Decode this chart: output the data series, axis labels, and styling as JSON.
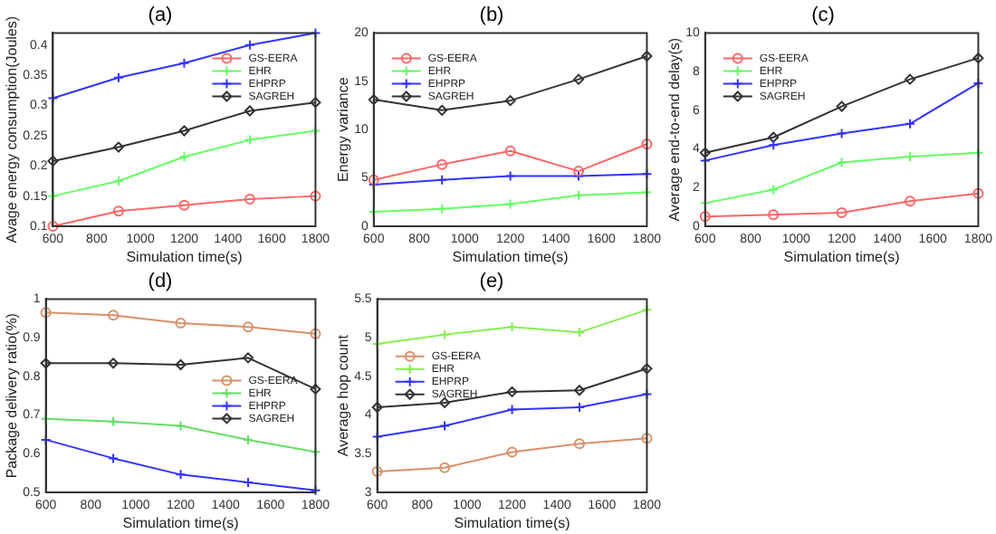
{
  "chart_data": [
    {
      "type": "line",
      "title": "(a)",
      "xlabel": "Simulation time(s)",
      "ylabel": "Avage energy consumption(Joules)",
      "x": [
        600,
        900,
        1200,
        1500,
        1800
      ],
      "xlim": [
        600,
        1800
      ],
      "xticks": [
        600,
        800,
        1000,
        1200,
        1400,
        1600,
        1800
      ],
      "ylim": [
        0.1,
        0.42
      ],
      "yticks": [
        0.1,
        0.15,
        0.2,
        0.25,
        0.3,
        0.35,
        0.4
      ],
      "legend": "top right",
      "series": [
        {
          "name": "GS-EERA",
          "color": "#ff6666",
          "marker": "circle",
          "values": [
            0.1,
            0.125,
            0.135,
            0.145,
            0.15
          ]
        },
        {
          "name": "EHR",
          "color": "#66ff66",
          "marker": "cross",
          "values": [
            0.15,
            0.175,
            0.215,
            0.243,
            0.258
          ]
        },
        {
          "name": "EHPRP",
          "color": "#3333ff",
          "marker": "cross",
          "values": [
            0.312,
            0.346,
            0.37,
            0.4,
            0.42
          ]
        },
        {
          "name": "SAGREH",
          "color": "#333333",
          "marker": "diamond",
          "values": [
            0.208,
            0.231,
            0.258,
            0.291,
            0.305
          ]
        }
      ]
    },
    {
      "type": "line",
      "title": "(b)",
      "xlabel": "Simulation time(s)",
      "ylabel": "Energy variance",
      "x": [
        600,
        900,
        1200,
        1500,
        1800
      ],
      "xlim": [
        600,
        1800
      ],
      "xticks": [
        600,
        800,
        1000,
        1200,
        1400,
        1600,
        1800
      ],
      "ylim": [
        0,
        20
      ],
      "yticks": [
        0,
        5,
        10,
        15,
        20
      ],
      "legend": "top left",
      "series": [
        {
          "name": "GS-EERA",
          "color": "#ff6666",
          "marker": "circle",
          "values": [
            4.8,
            6.4,
            7.8,
            5.7,
            8.5
          ]
        },
        {
          "name": "EHR",
          "color": "#66ff66",
          "marker": "cross",
          "values": [
            1.5,
            1.8,
            2.3,
            3.2,
            3.5
          ]
        },
        {
          "name": "EHPRP",
          "color": "#3333ff",
          "marker": "cross",
          "values": [
            4.3,
            4.8,
            5.2,
            5.2,
            5.4
          ]
        },
        {
          "name": "SAGREH",
          "color": "#333333",
          "marker": "diamond",
          "values": [
            13.1,
            12.0,
            13.0,
            15.2,
            17.6
          ]
        }
      ]
    },
    {
      "type": "line",
      "title": "(c)",
      "xlabel": "Simulation time(s)",
      "ylabel": "Average end-to-end delay(s)",
      "x": [
        600,
        900,
        1200,
        1500,
        1800
      ],
      "xlim": [
        600,
        1800
      ],
      "xticks": [
        600,
        800,
        1000,
        1200,
        1400,
        1600,
        1800
      ],
      "ylim": [
        0,
        10
      ],
      "yticks": [
        0,
        2,
        4,
        6,
        8,
        10
      ],
      "legend": "top left",
      "series": [
        {
          "name": "GS-EERA",
          "color": "#ff6666",
          "marker": "circle",
          "values": [
            0.5,
            0.6,
            0.7,
            1.3,
            1.7
          ]
        },
        {
          "name": "EHR",
          "color": "#66ff66",
          "marker": "cross",
          "values": [
            1.2,
            1.9,
            3.3,
            3.6,
            3.8
          ]
        },
        {
          "name": "EHPRP",
          "color": "#3333ff",
          "marker": "cross",
          "values": [
            3.4,
            4.2,
            4.8,
            5.3,
            7.4
          ]
        },
        {
          "name": "SAGREH",
          "color": "#333333",
          "marker": "diamond",
          "values": [
            3.8,
            4.6,
            6.2,
            7.6,
            8.7
          ]
        }
      ]
    },
    {
      "type": "line",
      "title": "(d)",
      "xlabel": "Simulation time(s)",
      "ylabel": "Package delivery ratio(%)",
      "x": [
        600,
        900,
        1200,
        1500,
        1800
      ],
      "xlim": [
        600,
        1800
      ],
      "xticks": [
        600,
        800,
        1000,
        1200,
        1400,
        1600,
        1800
      ],
      "ylim": [
        0.5,
        1
      ],
      "yticks": [
        0.5,
        0.6,
        0.7,
        0.8,
        0.9,
        1
      ],
      "legend": "right",
      "series": [
        {
          "name": "GS-EERA",
          "color": "#d9906a",
          "marker": "circle",
          "values": [
            0.965,
            0.958,
            0.938,
            0.928,
            0.91
          ]
        },
        {
          "name": "EHR",
          "color": "#66dd66",
          "marker": "cross",
          "values": [
            0.69,
            0.683,
            0.672,
            0.636,
            0.605
          ]
        },
        {
          "name": "EHPRP",
          "color": "#3333ff",
          "marker": "cross",
          "values": [
            0.636,
            0.588,
            0.546,
            0.526,
            0.505
          ]
        },
        {
          "name": "SAGREH",
          "color": "#333333",
          "marker": "diamond",
          "values": [
            0.834,
            0.834,
            0.83,
            0.848,
            0.767
          ]
        }
      ]
    },
    {
      "type": "line",
      "title": "(e)",
      "xlabel": "Simulation time(s)",
      "ylabel": "Average hop count",
      "x": [
        600,
        900,
        1200,
        1500,
        1800
      ],
      "xlim": [
        600,
        1800
      ],
      "xticks": [
        600,
        800,
        1000,
        1200,
        1400,
        1600,
        1800
      ],
      "ylim": [
        3,
        5.5
      ],
      "yticks": [
        3,
        3.5,
        4,
        4.5,
        5,
        5.5
      ],
      "legend": "left",
      "series": [
        {
          "name": "GS-EERA",
          "color": "#d9906a",
          "marker": "circle",
          "values": [
            3.27,
            3.32,
            3.52,
            3.63,
            3.7
          ]
        },
        {
          "name": "EHR",
          "color": "#88ee55",
          "marker": "cross",
          "values": [
            4.92,
            5.04,
            5.14,
            5.07,
            5.36
          ]
        },
        {
          "name": "EHPRP",
          "color": "#3333ff",
          "marker": "cross",
          "values": [
            3.72,
            3.86,
            4.07,
            4.1,
            4.27
          ]
        },
        {
          "name": "SAGREH",
          "color": "#333333",
          "marker": "diamond",
          "values": [
            4.1,
            4.16,
            4.3,
            4.32,
            4.6
          ]
        }
      ]
    }
  ]
}
